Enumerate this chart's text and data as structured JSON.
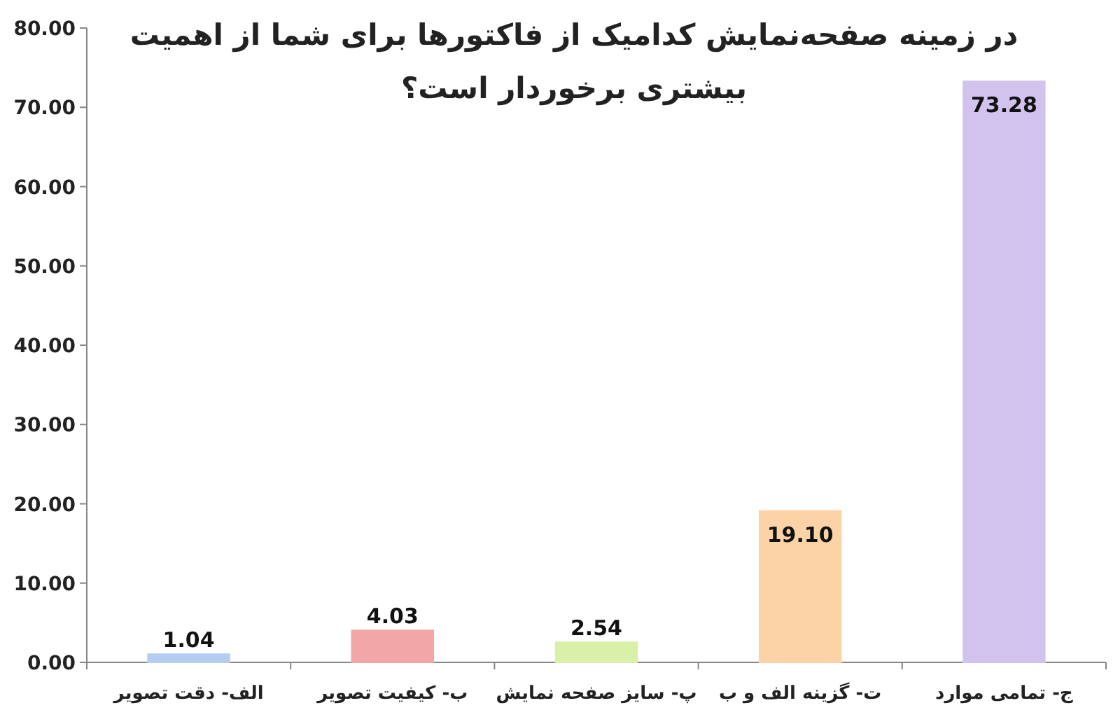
{
  "chart_data": {
    "type": "bar",
    "title": "در زمینه صفحه‌نمایش کدامیک از فاکتورها برای شما از اهمیت بیشتری برخوردار است؟",
    "categories": [
      "الف- دقت تصویر",
      "ب- کیفیت تصویر",
      "پ- سایز صفحه نمایش",
      "ت- گزینه الف و ب",
      "ج- تمامی موارد"
    ],
    "values": [
      1.04,
      4.03,
      2.54,
      19.1,
      73.28
    ],
    "colors": [
      "#b4cdf0",
      "#f2a6a6",
      "#d9f0a8",
      "#fcd3a6",
      "#d2c3ee"
    ],
    "ylim": [
      0,
      80
    ],
    "yticks": [
      {
        "value": 0,
        "label": "0.00"
      },
      {
        "value": 10,
        "label": "10.00"
      },
      {
        "value": 20,
        "label": "20.00"
      },
      {
        "value": 30,
        "label": "30.00"
      },
      {
        "value": 40,
        "label": "40.00"
      },
      {
        "value": 50,
        "label": "50.00"
      },
      {
        "value": 60,
        "label": "60.00"
      },
      {
        "value": 70,
        "label": "70.00"
      },
      {
        "value": 80,
        "label": "80.00"
      }
    ],
    "value_labels": [
      "1.04",
      "4.03",
      "2.54",
      "19.10",
      "73.28"
    ],
    "grid": false
  }
}
